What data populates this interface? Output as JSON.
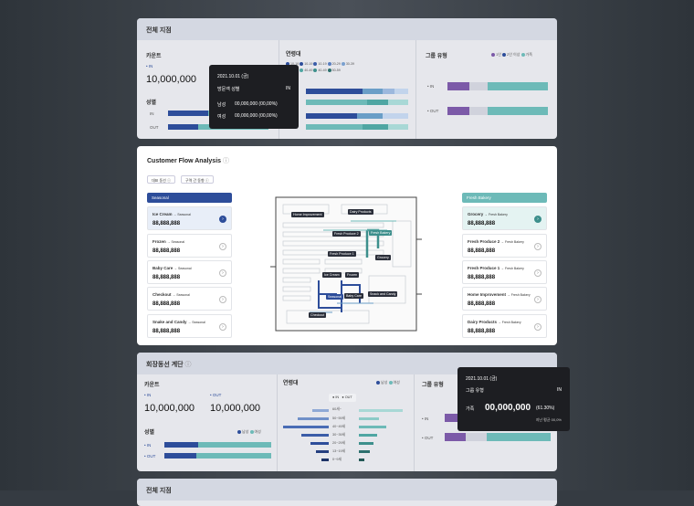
{
  "top_card": {
    "title": "전체 지점",
    "count_label": "카운트",
    "in": "IN",
    "in_value": "10,000,000",
    "gender_label": "성별",
    "gender_in": "IN",
    "gender_out": "OUT",
    "age_label": "연령대",
    "age_legend": [
      "10-19",
      "10-19",
      "10-19",
      "20-29",
      "30-39",
      "30-39",
      "40-49",
      "40-49",
      "50-59"
    ],
    "group_label": "그룹 유형",
    "group_legend": [
      "1인",
      "2인 이상",
      "가족"
    ],
    "group_in": "IN",
    "group_out": "OUT"
  },
  "tooltip1": {
    "date": "2021.10.01 (금)",
    "title": "방문객 성별",
    "inout": "IN",
    "row1_label": "남성",
    "row1_value": "00,000,000 (00,00%)",
    "row2_label": "여성",
    "row2_value": "00,000,000 (00,00%)"
  },
  "flow": {
    "title": "Customer Flow Analysis",
    "tab1": "대표 동선",
    "tab2": "구역 간 동향",
    "left_header": "Seasonal",
    "right_header": "Fresh Bakery",
    "left_items": [
      {
        "name": "Ice Cream",
        "sub": "→ Seasonal",
        "value": "88,888,888"
      },
      {
        "name": "Frozen",
        "sub": "→ Seasonal",
        "value": "88,888,888"
      },
      {
        "name": "Baby Care",
        "sub": "→ Seasonal",
        "value": "88,888,888"
      },
      {
        "name": "Checkout",
        "sub": "→ Seasonal",
        "value": "88,888,888"
      },
      {
        "name": "Snake and Candy",
        "sub": "→ Seasonal",
        "value": "88,888,888"
      }
    ],
    "right_items": [
      {
        "name": "Grocery",
        "sub": "→ Fresh Bakery",
        "value": "88,888,888"
      },
      {
        "name": "Fresh Produce 2",
        "sub": "→ Fresh Bakery",
        "value": "88,888,888"
      },
      {
        "name": "Fresh Produce 1",
        "sub": "→ Fresh Bakery",
        "value": "88,888,888"
      },
      {
        "name": "Home Improvement",
        "sub": "→ Fresh Bakery",
        "value": "88,888,888"
      },
      {
        "name": "Dairy Products",
        "sub": "→ Fresh Bakery",
        "value": "88,888,888"
      }
    ],
    "map_labels": {
      "home": "Home Improvement",
      "dairy": "Dairy Products",
      "fp2": "Fresh Produce 2",
      "fb": "Fresh Bakery",
      "fp1": "Fresh Produce 1",
      "grocery": "Grocery",
      "ice": "Ice Cream",
      "frozen": "Frozen",
      "seasonal": "Seasonal",
      "baby": "Baby Care",
      "snack": "Snack and Candy",
      "checkout": "Checkout"
    }
  },
  "bottom_card": {
    "title": "회장동선 계단",
    "count_label": "카운트",
    "in": "IN",
    "out": "OUT",
    "in_value": "10,000,000",
    "out_value": "10,000,000",
    "gender_label": "성별",
    "gender_legend": [
      "남성",
      "여성"
    ],
    "gender_in": "IN",
    "gender_out": "OUT",
    "age_label": "연령대",
    "age_legend": [
      "남성",
      "여성"
    ],
    "age_toggle": [
      "IN",
      "OUT"
    ],
    "age_groups": [
      "60세~",
      "50~59세",
      "40~49세",
      "30~39세",
      "20~29세",
      "13~19세",
      "0~9세"
    ],
    "group_label": "그룹 유형",
    "group_in": "IN",
    "group_out": "OUT"
  },
  "tooltip2": {
    "date": "2021.10.01 (금)",
    "title": "그룹 유형",
    "inout": "IN",
    "row_label": "가족",
    "row_value": "00,000,000",
    "row_pct": "(61.30%)",
    "note": "지난 평균 00,0%"
  },
  "next_card": {
    "title": "전체 지점"
  }
}
